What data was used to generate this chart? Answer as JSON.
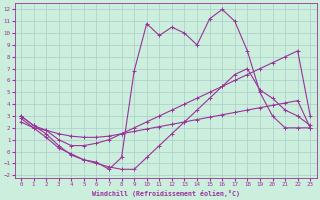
{
  "xlabel": "Windchill (Refroidissement éolien,°C)",
  "background_color": "#cceedd",
  "grid_color": "#aacccc",
  "line_color": "#993399",
  "xlim": [
    -0.5,
    23.5
  ],
  "ylim": [
    -2.2,
    12.5
  ],
  "xticks": [
    0,
    1,
    2,
    3,
    4,
    5,
    6,
    7,
    8,
    9,
    10,
    11,
    12,
    13,
    14,
    15,
    16,
    17,
    18,
    19,
    20,
    21,
    22,
    23
  ],
  "yticks": [
    -2,
    -1,
    0,
    1,
    2,
    3,
    4,
    5,
    6,
    7,
    8,
    9,
    10,
    11,
    12
  ],
  "curve1_x": [
    0,
    1,
    2,
    3,
    4,
    5,
    6,
    7,
    8,
    9,
    10,
    11,
    12,
    13,
    14,
    15,
    16,
    17,
    18,
    19,
    20,
    21,
    22,
    23
  ],
  "curve1_y": [
    3.0,
    2.2,
    1.5,
    0.5,
    -0.3,
    -0.7,
    -0.9,
    -1.5,
    -0.5,
    6.8,
    10.8,
    9.8,
    10.5,
    10.0,
    9.0,
    11.2,
    12.0,
    11.0,
    8.5,
    5.0,
    3.0,
    2.0,
    2.0,
    2.0
  ],
  "curve2_x": [
    0,
    1,
    2,
    3,
    4,
    5,
    6,
    7,
    8,
    9,
    10,
    11,
    12,
    13,
    14,
    15,
    16,
    17,
    18,
    19,
    20,
    21,
    22,
    23
  ],
  "curve2_y": [
    3.0,
    2.2,
    1.8,
    1.0,
    0.5,
    0.5,
    0.7,
    1.0,
    1.5,
    2.0,
    2.5,
    3.0,
    3.5,
    4.0,
    4.5,
    5.0,
    5.5,
    6.0,
    6.5,
    7.0,
    7.5,
    8.0,
    8.5,
    3.0
  ],
  "curve3_x": [
    0,
    1,
    2,
    3,
    4,
    5,
    6,
    7,
    8,
    9,
    10,
    11,
    12,
    13,
    14,
    15,
    16,
    17,
    18,
    19,
    20,
    21,
    22,
    23
  ],
  "curve3_y": [
    2.5,
    2.0,
    1.8,
    1.5,
    1.3,
    1.2,
    1.2,
    1.3,
    1.5,
    1.7,
    1.9,
    2.1,
    2.3,
    2.5,
    2.7,
    2.9,
    3.1,
    3.3,
    3.5,
    3.7,
    3.9,
    4.1,
    4.3,
    2.0
  ],
  "curve4_x": [
    0,
    1,
    2,
    3,
    4,
    5,
    6,
    7,
    8,
    9,
    10,
    11,
    12,
    13,
    14,
    15,
    16,
    17,
    18,
    19,
    20,
    21,
    22,
    23
  ],
  "curve4_y": [
    2.8,
    2.0,
    1.2,
    0.3,
    -0.2,
    -0.7,
    -1.0,
    -1.3,
    -1.5,
    -1.5,
    -0.5,
    0.5,
    1.5,
    2.5,
    3.5,
    4.5,
    5.5,
    6.5,
    7.0,
    5.2,
    4.5,
    3.5,
    3.0,
    2.2
  ]
}
